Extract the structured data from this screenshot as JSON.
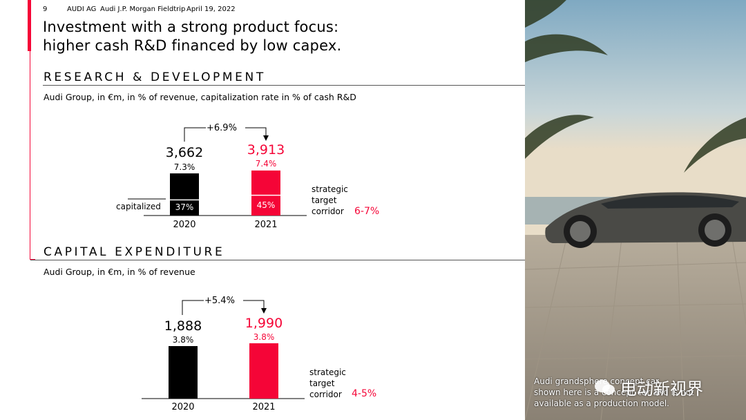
{
  "header": {
    "page_number": "9",
    "company": "AUDI AG",
    "event": "Audi J.P. Morgan Fieldtrip",
    "date": "April 19, 2022"
  },
  "title_line1": "Investment with a strong product focus:",
  "title_line2": "higher cash R&D financed by low capex.",
  "colors": {
    "accent": "#f50537",
    "black": "#000000"
  },
  "photo": {
    "caption_line1": "Audi grandsphere concept car",
    "caption_line2": "shown here is a concept car and is not",
    "caption_line3": "available as a production model.",
    "watermark": "电动新视界"
  },
  "chart_data": [
    {
      "type": "bar",
      "section_title": "RESEARCH & DEVELOPMENT",
      "subtitle": "Audi Group, in €m, in % of revenue, capitalization rate in % of cash R&D",
      "categories": [
        "2020",
        "2021"
      ],
      "values": [
        3662,
        3913
      ],
      "value_labels": [
        "3,662",
        "3,913"
      ],
      "revenue_pct": [
        "7.3%",
        "7.4%"
      ],
      "capitalized_pct": [
        "37%",
        "45%"
      ],
      "capitalized_label": "capitalized",
      "growth_label": "+6.9%",
      "corridor_label_lines": [
        "strategic",
        "target",
        "corridor"
      ],
      "corridor_value": "6-7%"
    },
    {
      "type": "bar",
      "section_title": "CAPITAL EXPENDITURE",
      "subtitle": "Audi Group, in €m, in % of revenue",
      "categories": [
        "2020",
        "2021"
      ],
      "values": [
        1888,
        1990
      ],
      "value_labels": [
        "1,888",
        "1,990"
      ],
      "revenue_pct": [
        "3.8%",
        "3.8%"
      ],
      "growth_label": "+5.4%",
      "corridor_label_lines": [
        "strategic",
        "target",
        "corridor"
      ],
      "corridor_value": "4-5%"
    }
  ]
}
